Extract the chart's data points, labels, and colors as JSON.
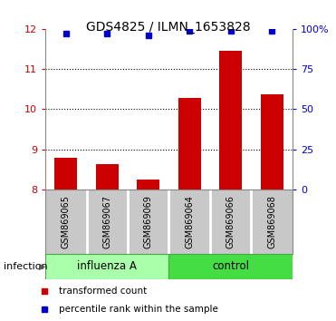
{
  "title": "GDS4825 / ILMN_1653828",
  "samples": [
    "GSM869065",
    "GSM869067",
    "GSM869069",
    "GSM869064",
    "GSM869066",
    "GSM869068"
  ],
  "bar_values": [
    8.78,
    8.63,
    8.25,
    10.28,
    11.45,
    10.38
  ],
  "percentile_values": [
    97,
    97,
    96,
    99,
    99,
    99
  ],
  "bar_color": "#cc0000",
  "dot_color": "#0000cc",
  "ylim_left": [
    8,
    12
  ],
  "ylim_right": [
    0,
    100
  ],
  "yticks_left": [
    8,
    9,
    10,
    11,
    12
  ],
  "yticks_right": [
    0,
    25,
    50,
    75,
    100
  ],
  "ytick_labels_right": [
    "0",
    "25",
    "50",
    "75",
    "100%"
  ],
  "group1_label": "influenza A",
  "group2_label": "control",
  "group1_n": 3,
  "group2_n": 3,
  "infection_label": "infection",
  "legend_bar_label": "transformed count",
  "legend_dot_label": "percentile rank within the sample",
  "group1_color": "#aaffaa",
  "group2_color": "#44dd44",
  "bar_background": "#c8c8c8",
  "title_fontsize": 10,
  "tick_fontsize": 8,
  "axis_color_left": "#cc0000",
  "axis_color_right": "#0000cc",
  "plot_bg": "#ffffff"
}
